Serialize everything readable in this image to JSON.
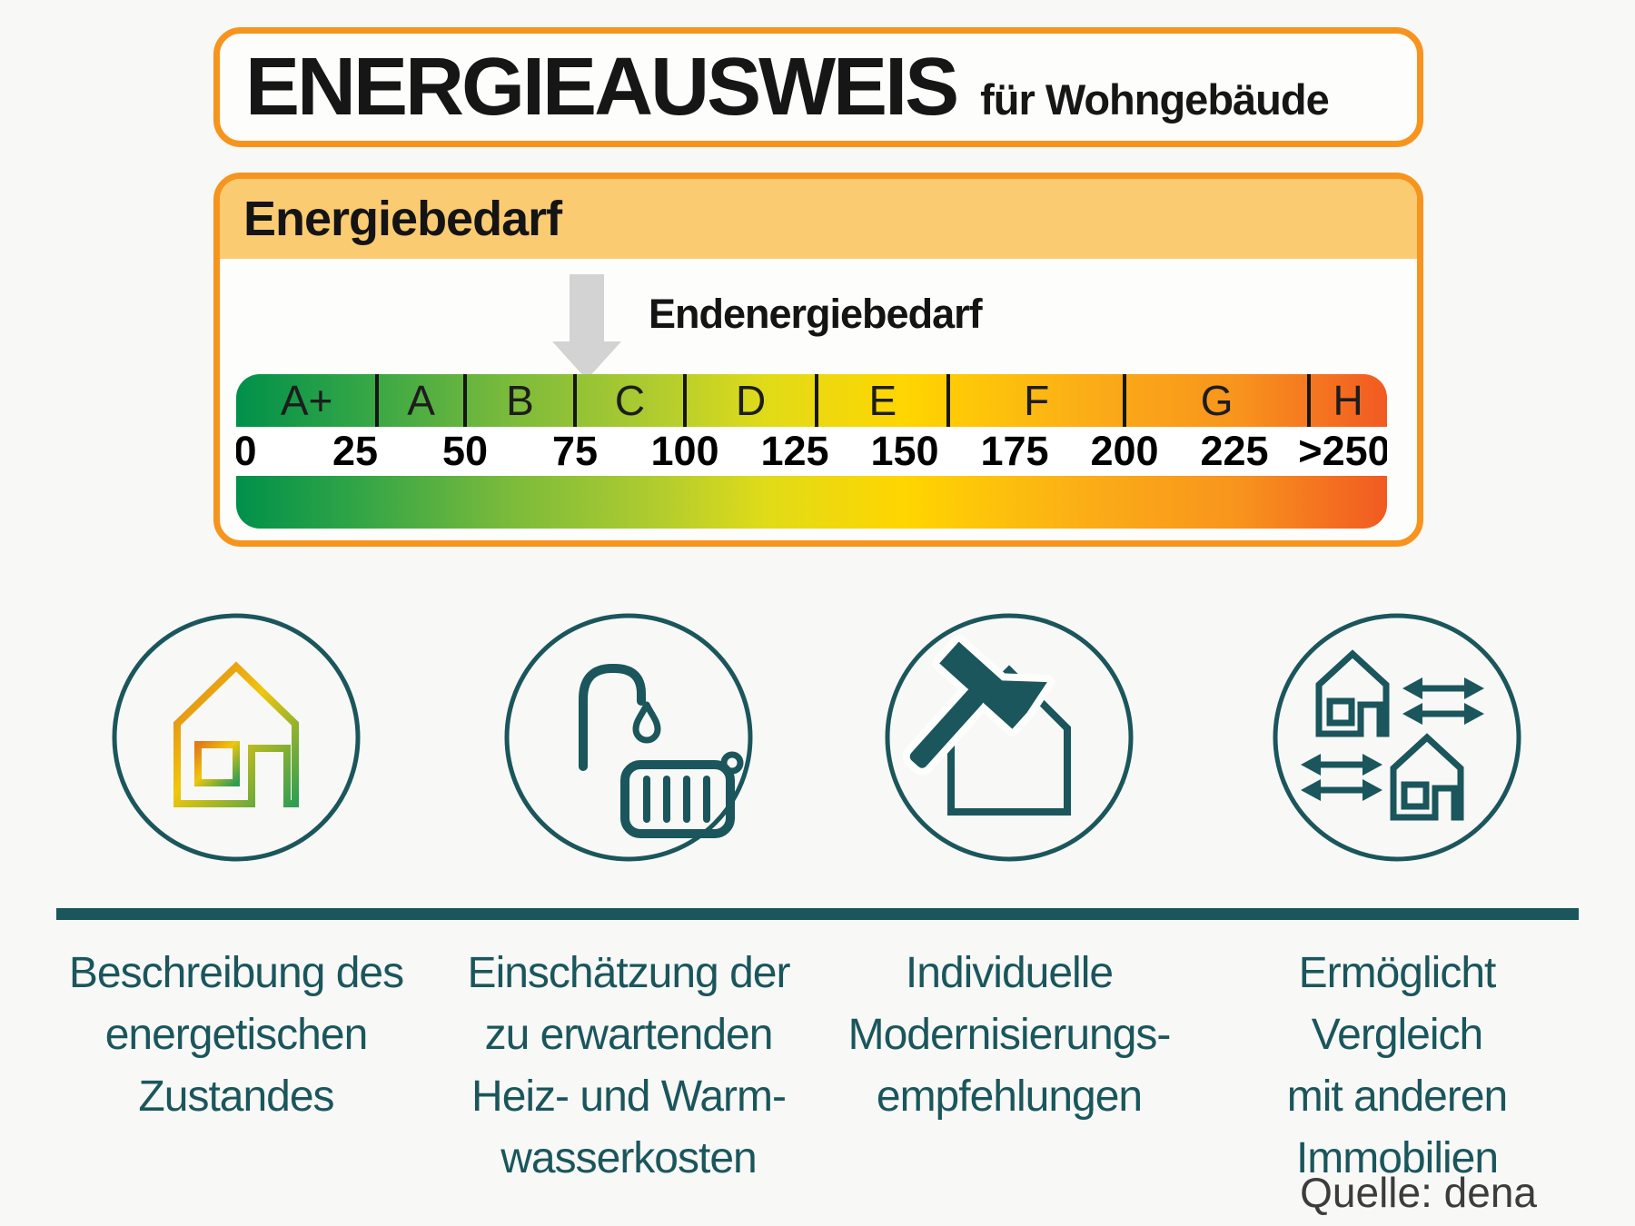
{
  "title": {
    "main": "ENERGIEAUSWEIS",
    "suffix": "für Wohngebäude"
  },
  "panel": {
    "header": "Energiebedarf",
    "pointer_label": "Endenergiebedarf"
  },
  "chart_data": {
    "type": "scale",
    "title": "Energiebedarf",
    "marker": {
      "label": "Endenergiebedarf",
      "value": 77
    },
    "grades": [
      {
        "letter": "A+",
        "from": 0,
        "to": 30
      },
      {
        "letter": "A",
        "from": 30,
        "to": 50
      },
      {
        "letter": "B",
        "from": 50,
        "to": 75
      },
      {
        "letter": "C",
        "from": 75,
        "to": 100
      },
      {
        "letter": "D",
        "from": 100,
        "to": 130
      },
      {
        "letter": "E",
        "from": 130,
        "to": 160
      },
      {
        "letter": "F",
        "from": 160,
        "to": 200
      },
      {
        "letter": "G",
        "from": 200,
        "to": 242
      },
      {
        "letter": "H",
        "from": 242,
        "to": null
      }
    ],
    "ticks": [
      "0",
      "25",
      "50",
      "75",
      "100",
      "125",
      "150",
      "175",
      "200",
      "225",
      ">250"
    ],
    "xlim": [
      0,
      260
    ],
    "gradient": [
      "#00904a",
      "#2fa447",
      "#7cbb3b",
      "#aecb30",
      "#e0db19",
      "#ffd600",
      "#fbad17",
      "#f8941d",
      "#f15a22"
    ]
  },
  "features": [
    {
      "icon": "house-energy-state-icon",
      "lines": [
        "Beschreibung des",
        "energetischen",
        "Zustandes"
      ]
    },
    {
      "icon": "shower-radiator-icon",
      "lines": [
        "Einschätzung der",
        "zu erwartenden",
        "Heiz- und Warm-",
        "wasserkosten"
      ]
    },
    {
      "icon": "house-hammer-icon",
      "lines": [
        "Individuelle",
        "Modernisierungs-",
        "empfehlungen"
      ]
    },
    {
      "icon": "houses-compare-icon",
      "lines": [
        "Ermöglicht",
        "Vergleich",
        "mit anderen",
        "Immobilien"
      ]
    }
  ],
  "source": "Quelle: dena",
  "colors": {
    "accent_orange": "#f7941d",
    "header_fill": "#fbcb72",
    "teal": "#1a565c",
    "arrow_gray": "#d3d3d3"
  }
}
